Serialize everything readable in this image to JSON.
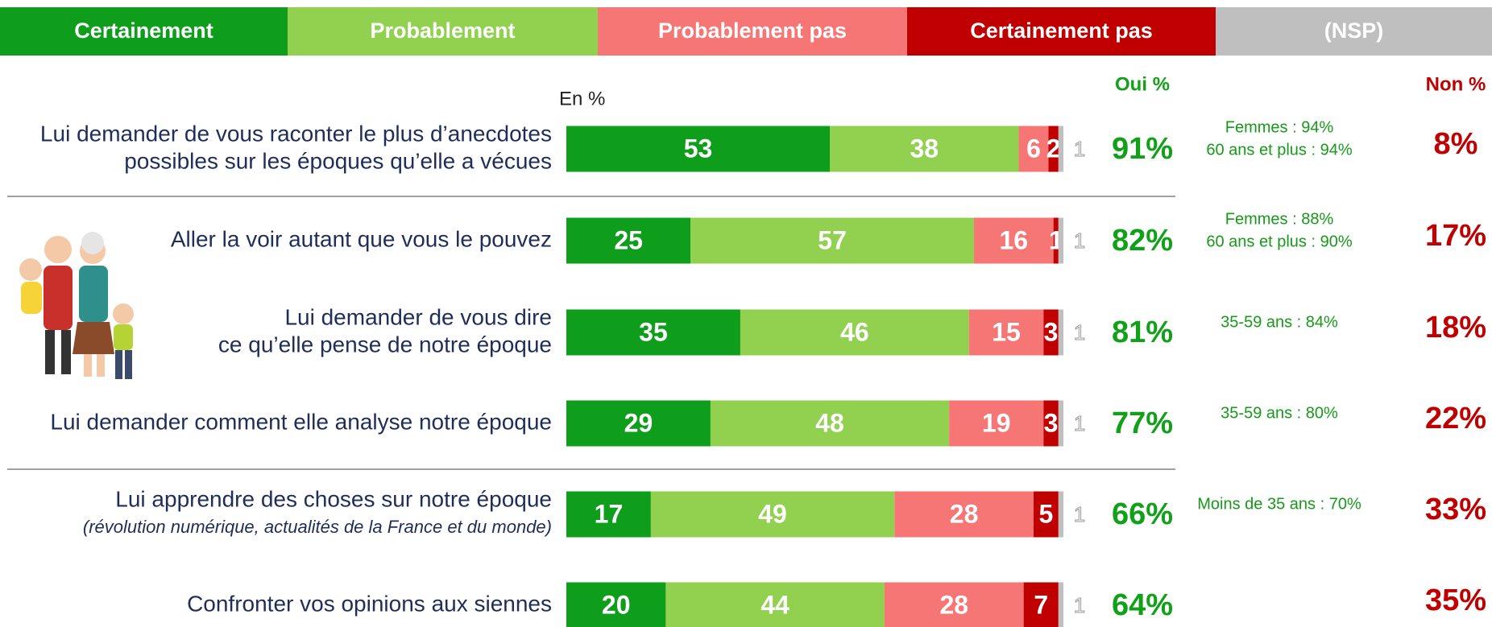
{
  "chart_data": {
    "type": "bar",
    "orientation": "horizontal",
    "stacked": true,
    "unit_note": "En %",
    "categories": [
      [
        "Lui demander de vous raconter le plus d’anecdotes",
        "possibles sur les époques qu’elle a vécues"
      ],
      [
        "Aller la voir autant que vous le pouvez"
      ],
      [
        "Lui demander de vous dire",
        "ce qu’elle pense de notre époque"
      ],
      [
        "Lui demander comment elle analyse notre époque"
      ],
      [
        "Lui apprendre des choses sur notre époque"
      ],
      [
        "Confronter vos opinions aux siennes"
      ]
    ],
    "category_details": [
      null,
      null,
      null,
      null,
      "(révolution numérique, actualités de la France et du monde)",
      null
    ],
    "series": [
      {
        "name": "Certainement",
        "color": "#0e9e1c",
        "values": [
          53,
          25,
          35,
          29,
          17,
          20
        ]
      },
      {
        "name": "Probablement",
        "color": "#92d050",
        "values": [
          38,
          57,
          46,
          48,
          49,
          44
        ]
      },
      {
        "name": "Probablement pas",
        "color": "#f67676",
        "values": [
          6,
          16,
          15,
          19,
          28,
          28
        ]
      },
      {
        "name": "Certainement pas",
        "color": "#c00000",
        "values": [
          2,
          1,
          3,
          3,
          5,
          7
        ]
      },
      {
        "name": "(NSP)",
        "color": "#bfbfbf",
        "values": [
          1,
          1,
          1,
          1,
          1,
          1
        ]
      }
    ],
    "oui": {
      "name": "Oui %",
      "color": "#11a118",
      "values": [
        91,
        82,
        81,
        77,
        66,
        64
      ],
      "value_labels": [
        "91%",
        "82%",
        "81%",
        "77%",
        "66%",
        "64%"
      ]
    },
    "non": {
      "name": "Non %",
      "color": "#c00000",
      "values": [
        8,
        17,
        18,
        22,
        33,
        35
      ],
      "value_labels": [
        "8%",
        "17%",
        "18%",
        "22%",
        "33%",
        "35%"
      ]
    },
    "notes": [
      [
        "Femmes : 94%",
        "60 ans et plus : 94%"
      ],
      [
        "Femmes : 88%",
        "60 ans et plus : 90%"
      ],
      [
        "35-59 ans : 84%"
      ],
      [
        "35-59 ans : 80%"
      ],
      [
        "Moins de 35 ans : 70%"
      ],
      []
    ]
  }
}
